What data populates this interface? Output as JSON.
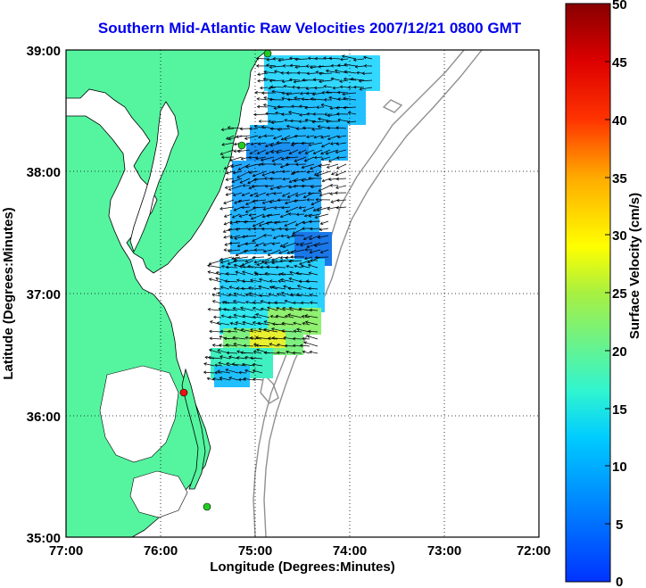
{
  "title": "Southern Mid-Atlantic Raw Velocities 2007/12/21 0800 GMT",
  "xlabel": "Longitude (Degrees:Minutes)",
  "ylabel": "Latitude (Degrees:Minutes)",
  "x_ticks": [
    "77:00",
    "76:00",
    "75:00",
    "74:00",
    "73:00",
    "72:00"
  ],
  "y_ticks": [
    "39:00",
    "38:00",
    "37:00",
    "36:00",
    "35:00"
  ],
  "colorbar": {
    "label": "Surface Velocity (cm/s)",
    "ticks": [
      "50",
      "45",
      "40",
      "35",
      "30",
      "25",
      "20",
      "15",
      "10",
      "5",
      "0"
    ],
    "min": 0,
    "max": 50
  },
  "colors": {
    "land": "#55f5a0",
    "ocean": "#ffffff",
    "title": "#0000ee",
    "site_active": "#22cc22",
    "site_inactive": "#ee1111"
  },
  "chart_data": {
    "type": "map",
    "xlim": [
      -77,
      -72
    ],
    "ylim": [
      35,
      39
    ],
    "grid": true,
    "stations": [
      {
        "lon": -74.88,
        "lat": 38.98,
        "status": "active"
      },
      {
        "lon": -75.15,
        "lat": 38.22,
        "status": "active"
      },
      {
        "lon": -75.75,
        "lat": 36.2,
        "status": "inactive"
      },
      {
        "lon": -75.47,
        "lat": 35.25,
        "status": "active"
      }
    ]
  }
}
